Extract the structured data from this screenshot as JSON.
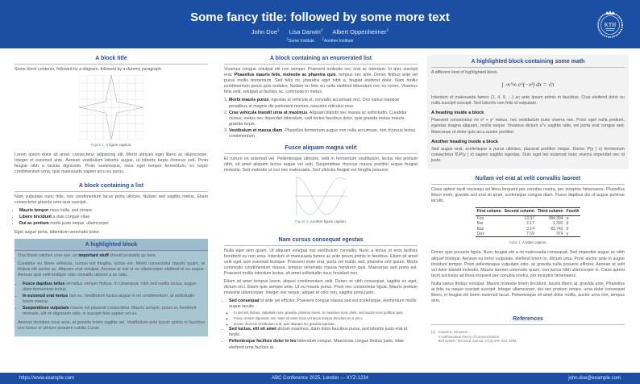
{
  "header": {
    "title": "Some fancy title: followed by some more text",
    "authors": [
      {
        "name": "John Doe",
        "aff": "1"
      },
      {
        "name": "Lisa Darwin",
        "aff": "2"
      },
      {
        "name": "Albert Oppenheimer",
        "aff": "2"
      }
    ],
    "institutions": [
      {
        "num": "1",
        "name": "Some Institute"
      },
      {
        "num": "2",
        "name": "Another Institute"
      }
    ],
    "logo_text": "KTH"
  },
  "footer": {
    "url": "https://www.example.com",
    "conference": "ABC Conference 2025, London — XYZ-1234",
    "email": "john.doe@example.com"
  },
  "colors": {
    "header": "#1a4fa3",
    "block_title": "#2b4e8f",
    "highlight_bg": "#a8c6d2",
    "math_bg": "#f2f2f2"
  },
  "left": {
    "block1": {
      "title": "A block title",
      "intro": "Some block contents, followed by a diagram, followed by a dummy paragraph.",
      "fig_num": "Figure 1.",
      "fig_caption": "A figure caption.",
      "para": "Lorem ipsum dolor sit amet, consectetur adipiscing elit. Morbi ultricies eget libero ac ullamcorper. Integer et euismod ante. Aenean vestibulum lobortis augue, ut lobortis turpis rhoncus sed. Proin feugiat nibh a lacinia dignissim. Proin scelerisque, risus eget tempor fermentum, ex turpis condimentum urna, quis malesuada sapien arcu eu purus."
    },
    "block2": {
      "title": "A block containing a list",
      "intro": "Nam vulputate nunc felis, non condimentum lacus porta ultrices. Nullam sed sagittis metus. Etiam consectetur gravida urna quis suscipit.",
      "items": [
        {
          "bold": "Mauris tempor",
          "text": " risus nulla, sed ornare"
        },
        {
          "bold": "Libero tincidunt",
          "text": " a duis congue vitae"
        },
        {
          "bold": "Dui ac pretium",
          "text": " morbi justo neque, ullamcorper"
        }
      ],
      "outro": "Eget augue porta, bibendum venenatis tortor."
    },
    "highlight": {
      "title": "A highlighted block",
      "intro_a": "This block catches your eye, so ",
      "intro_bold": "important stuff",
      "intro_b": " should probably go here.",
      "para": "Curabitur eu libero vehicula, cursus est fringilla, luctus est. Morbi consectetur mauris quam, at finibus elit auctor ac. Aliquam erat volutpat. Aenean at nisl ut ex ullamcorper eleifend et eu augue. Aenean quis velit tristique odio convallis ultrices a ac odio.",
      "items": [
        {
          "bold": "Fusce dapibus tellus",
          "text": " vel tellus semper finibus. In consequat, nibh sed mattis luctus, augue diam fermentum lectus."
        },
        {
          "bold": "In euismod erat metus",
          "text": " non ex. Vestibulum luctus augue in mi condimentum, at sollicitudin lorem viverra."
        },
        {
          "bold": "Suspendisse vulputate",
          "text": " mauris vel placerat consectetur. Mauris semper, purus ac hendrerit molestie, elit mi dignissim odio, in suscipit felis sapien vel ex."
        }
      ],
      "outro": "Aenean tincidunt risus eros, at gravida lorem sagittis vel. Vestibulum ante ipsum primis in faucibus orci luctus et ultrices posuere cubilia Curae."
    }
  },
  "middle": {
    "enum": {
      "title": "A block containing an enumerated list",
      "para_a": "Vivamus congue volutpat elit non semper. Praesent molestie nec erat ac interdum. In quis suscipit erat. ",
      "para_bold": "Phasellus mauris felis, molestie ac pharetra quis",
      "para_b": ", tempus nec ante. Donec finibus ante vel purus mollis fermentum. Sed felis mi, pharetra eget nibh a, feugiat eleifend dolor. Nam mollis condimentum purus quis sodales. Nullam eu felis eu nulla eleifend bibendum nec eu lorem. Vivamus felis velit, volutpat ut facilisis ac, commodo in metus.",
      "items": [
        {
          "bold": "Morbi mauris purus",
          "text": ", egestas at vehicula et, convallis accumsan orci. Orci varius natoque penatibus et magnis dis parturient montes, nascetur ridiculus mus."
        },
        {
          "bold": "Cras vehicula blandit urna ut maximus",
          "text": ". Aliquam blandit nec massa ac sollicitudin. Curabitur cursus, metus nec imperdiet bibendum, velit lectus faucibus dolor, quis gravida metus mauris gravida turpis."
        },
        {
          "bold": "Vestibulum et massa diam",
          "text": ". Phasellus fermentum augue non nulla accumsan, non rhoncus lectus condimentum."
        }
      ]
    },
    "fusce": {
      "title": "Fusce aliquam magna velit",
      "para": "Et rutrum ex euismod vel. Pellentesque ultricies, velit in fermentum vestibulum, lectus nisi pretium nibh, sit amet aliquam lectus augue vel velit. Suspendisse rhoncus massa porttitor augue feugiat molestie. Sed molestie ut orci nec malesuada. Sed ultricies feugiat est fringilla posuere.",
      "fig_num": "Figure 2.",
      "fig_caption": "Another figure caption."
    },
    "nam": {
      "title": "Nam cursus consequat egestas",
      "para1": "Nulla eget sem quam. Ut aliquam volutpat nisi vestibulum convallis. Nunc a lectus et eros facilisis hendrerit eu non urna. Interdum et malesuada fames ac ante ipsum primis in faucibus. Etiam sit amet velit eget sem euismod tristique. Praesent enim erat, porta vel mattis sed, pharetra sed ipsum. Morbi commodo condimentum massa, tempus venenatis massa hendrerit quis. Maecenas sed porta est. Praesent mollis interdum lectus, sit amet sollicitudin risus tincidunt non.",
      "para2": "Etiam sit amet tempus lorem, aliquet condimentum velit. Donec et nibh consequat, sagittis ex eget, dictum orci. Etiam quis semper ante. Ut eu mauris purus. Proin nec consectetur ligula. Mauris pretium molestie ullamcorper. Integer nisi neque, aliquet et odio non, sagittis porta justo.",
      "item1": {
        "bold": "Sed consequat",
        "text": " id ante vel efficitur. Praesent congue massa sed est scelerisque, elementum mollis augue iaculis.",
        "sub": [
          "In sed est finibus, vulputate nunc gravida, pulvinar lorem. In maximus nunc dolor, sed auctor eros porttitor quis.",
          "Fusce ornare dignissim nisi. Nam sit amet risus vel lacus tempor tincidunt eu a arcu.",
          "Donec rhoncus vestibulum erat, quis aliquam leo gravida egestas."
        ]
      },
      "item2": {
        "bold": "Sed luctus, elit sit amet",
        "text": " dictum maximus, diam dolor faucibus purus, sed lobortis justo erat id turpis."
      },
      "item3": {
        "bold": "Pellentesque facilisis dolor in leo",
        "text": " bibendum congue. Maecenas congue finibus justo, vitae eleifend urna facilisis at."
      }
    }
  },
  "right": {
    "math": {
      "title": "A highlighted block containing some math",
      "intro": "A different kind of highlighted block.",
      "equation": "∫₋∞^∞ e^(−x²) dx = √π",
      "para1": "Interdum et malesuada fames {1, 4, 9, …} ac ante ipsum primis in faucibus. Cras eleifend dolor eu nulla suscipit suscipit. Sed lobortis non felis id vulputate.",
      "h1": "A heading inside a block",
      "para2": "Praesent consectetur mi x² + y² metus, nec vestibulum justo viverra nec. Proin eget nulla pretium, egestas magna aliquam, mollis neque. Vivamus dictum uᵀv sagittis odio, vel porta erat congue sed. Maecenas ut dolor quis arcu auctor porttitor.",
      "h2": "Another heading inside a block",
      "para3": "Sed augue erat, scelerisque a purus ultricies, placerat porttitor neque. Donec P(y | x) fermentum consectetur ∇ₓP(y | x) sapien sagittis egestas. Duis eget leo euismod nunc viverra imperdiet nec id justo."
    },
    "nullam": {
      "title": "Nullam vel erat at velit convallis laoreet",
      "para": "Class aptent taciti sociosqu ad litora torquent per conubia nostra, per inceptos himenaeos. Phasellus libero enim, gravida sed erat sit amet, scelerisque congue diam. Fusce dapibus dui ut augue pulvinar iaculis.",
      "table": {
        "headers": [
          "First column",
          "Second column",
          "Third column",
          "Fourth"
        ],
        "rows": [
          [
            "Foo",
            "13.37",
            "384,394",
            "α"
          ],
          [
            "Bar",
            "2.17",
            "1,392",
            "β"
          ],
          [
            "Baz",
            "3.14",
            "83,742",
            "δ"
          ],
          [
            "Qux",
            "7.59",
            "974",
            "γ"
          ]
        ]
      },
      "tab_num": "Table 1.",
      "tab_caption": "A table caption.",
      "para2": "Donec quis posuere ligula. Nunc feugiat elit a mi malesuada consequat. Sed imperdiet augue ac nibh aliquet tristique. Aenean eu tortor vulputate, eleifend lorem in, dictum urna. Proin auctor ante in augue tincidunt tempor. Proin pellentesque vulputate odio, ac gravida nulla posuere efficitur. Aenean at velit vel dolor blandit molestie. Mauris laoreet commodo quam, non luctus nibh ullamcorper in. Class aptent taciti sociosqu ad litora torquent per conubia nostra, per inceptos himenaeos.",
      "para3": "Nulla varius finibus volutpat. Mauris molestie lorem tincidunt, iaculis libero at, gravida ante. Phasellus at felis eu neque suscipit suscipit. Integer ullamcorper, dui nec pretium ornare, urna dolor consequat libero, in feugiat elit lorem euismod lacus. Pellentesque sit amet dolor mollis, auctor urna non, tempus sem."
    },
    "refs": {
      "title": "References",
      "items": [
        {
          "num": "[1]",
          "author": "Claude E. Shannon.",
          "title": "A mathematical theory of communication.",
          "venue": "Bell System Technical Journal, 27(3):379–423, 1948."
        }
      ]
    }
  }
}
